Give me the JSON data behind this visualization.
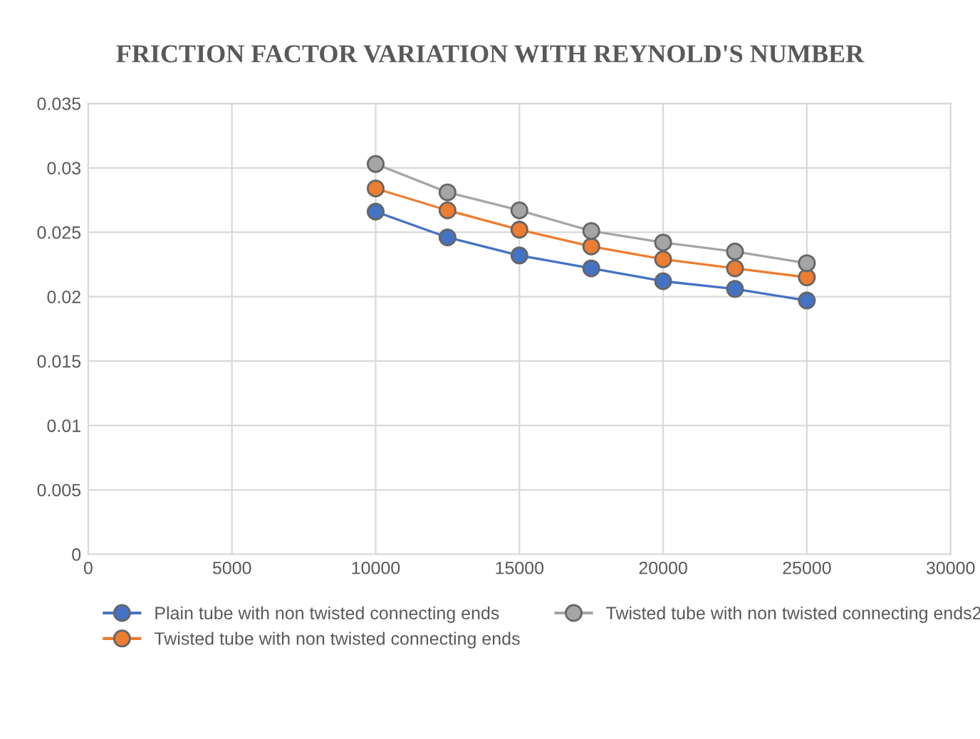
{
  "chart_data": {
    "type": "line",
    "title": "FRICTION FACTOR VARIATION WITH REYNOLD'S NUMBER",
    "x": [
      10000,
      12500,
      15000,
      17500,
      20000,
      22500,
      25000
    ],
    "series": [
      {
        "name": "Plain tube with non twisted connecting ends",
        "color": "#4472c4",
        "values": [
          0.0266,
          0.0246,
          0.0232,
          0.0222,
          0.0212,
          0.0206,
          0.0197
        ]
      },
      {
        "name": "Twisted tube with non twisted connecting ends",
        "color": "#ed7d31",
        "values": [
          0.0284,
          0.0267,
          0.0252,
          0.0239,
          0.0229,
          0.0222,
          0.0215
        ]
      },
      {
        "name": "Twisted tube with non twisted connecting ends2",
        "color": "#a5a5a5",
        "values": [
          0.0303,
          0.0281,
          0.0267,
          0.0251,
          0.0242,
          0.0235,
          0.0226
        ]
      }
    ],
    "xlim": [
      0,
      30000
    ],
    "xticks": [
      0,
      5000,
      10000,
      15000,
      20000,
      25000,
      30000
    ],
    "ylim": [
      0,
      0.035
    ],
    "yticks": [
      {
        "value": 0,
        "label": "0"
      },
      {
        "value": 0.005,
        "label": "0.005"
      },
      {
        "value": 0.01,
        "label": "0.01"
      },
      {
        "value": 0.015,
        "label": "0.015"
      },
      {
        "value": 0.02,
        "label": "0.02"
      },
      {
        "value": 0.025,
        "label": "0.025"
      },
      {
        "value": 0.03,
        "label": "0.03"
      },
      {
        "value": 0.035,
        "label": "0.035"
      }
    ],
    "grid": true,
    "legend": "bottom",
    "marker": "circle",
    "line_style": "solid"
  }
}
